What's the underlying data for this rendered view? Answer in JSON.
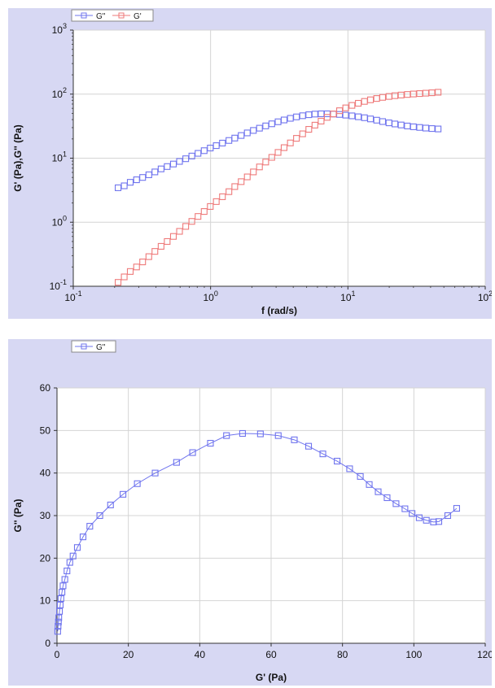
{
  "colors": {
    "panel_bg": "#d7d8f3",
    "plot_bg": "#ffffff",
    "grid": "#d4d4d4",
    "series_blue": "#6f74ee",
    "series_red": "#ee7a7a"
  },
  "chart_data": [
    {
      "type": "scatter",
      "x_scale": "log",
      "y_scale": "log",
      "xlabel": "f (rad/s)",
      "ylabel": "G' (Pa),G'' (Pa)",
      "xlim": [
        0.1,
        100
      ],
      "ylim": [
        0.1,
        1000
      ],
      "x_ticks": [
        {
          "base": "10",
          "exp": "-1"
        },
        {
          "base": "10",
          "exp": "0"
        },
        {
          "base": "10",
          "exp": "1"
        },
        {
          "base": "10",
          "exp": "2"
        }
      ],
      "y_ticks": [
        {
          "base": "10",
          "exp": "-1"
        },
        {
          "base": "10",
          "exp": "0"
        },
        {
          "base": "10",
          "exp": "1"
        },
        {
          "base": "10",
          "exp": "2"
        },
        {
          "base": "10",
          "exp": "3"
        }
      ],
      "grid": true,
      "legend_position": "top-left",
      "legend": [
        "G\"",
        "G'"
      ],
      "series": [
        {
          "name": "G\"",
          "color": "#6f74ee",
          "marker": "square-open",
          "x": [
            0.212,
            0.235,
            0.26,
            0.289,
            0.32,
            0.355,
            0.393,
            0.436,
            0.483,
            0.536,
            0.594,
            0.659,
            0.73,
            0.81,
            0.898,
            0.995,
            1.1,
            1.22,
            1.36,
            1.5,
            1.67,
            1.85,
            2.05,
            2.27,
            2.52,
            2.79,
            3.1,
            3.43,
            3.81,
            4.22,
            4.68,
            5.19,
            5.75,
            6.38,
            7.07,
            7.84,
            8.69,
            9.64,
            10.7,
            11.9,
            13.2,
            14.6,
            16.2,
            17.9,
            19.9,
            22.0,
            24.4,
            27.1,
            30.0,
            33.3,
            36.9,
            40.9,
            45.4
          ],
          "y": [
            3.45,
            3.7,
            4.2,
            4.6,
            5.0,
            5.5,
            6.1,
            6.8,
            7.4,
            8.1,
            8.9,
            9.8,
            10.8,
            11.9,
            13.1,
            14.4,
            15.7,
            17.2,
            18.9,
            20.6,
            22.6,
            24.8,
            27.1,
            29.4,
            31.9,
            34.4,
            37.0,
            39.5,
            41.9,
            44.1,
            46.0,
            47.7,
            48.8,
            49.3,
            49.3,
            48.9,
            48.2,
            47.0,
            45.8,
            44.3,
            42.8,
            41.0,
            39.2,
            37.3,
            35.6,
            34.2,
            33.0,
            31.8,
            30.9,
            30.2,
            29.5,
            29.0,
            28.6
          ]
        },
        {
          "name": "G'",
          "color": "#ee7a7a",
          "marker": "square-open",
          "x": [
            0.212,
            0.235,
            0.26,
            0.289,
            0.32,
            0.355,
            0.393,
            0.436,
            0.483,
            0.536,
            0.594,
            0.659,
            0.73,
            0.81,
            0.898,
            0.995,
            1.1,
            1.22,
            1.36,
            1.5,
            1.67,
            1.85,
            2.05,
            2.27,
            2.52,
            2.79,
            3.1,
            3.43,
            3.81,
            4.22,
            4.68,
            5.19,
            5.75,
            6.38,
            7.07,
            7.84,
            8.69,
            9.64,
            10.7,
            11.9,
            13.2,
            14.6,
            16.2,
            17.9,
            19.9,
            22.0,
            24.4,
            27.1,
            30.0,
            33.3,
            36.9,
            40.9,
            45.4
          ],
          "y": [
            0.115,
            0.14,
            0.17,
            0.2,
            0.24,
            0.29,
            0.35,
            0.42,
            0.5,
            0.6,
            0.72,
            0.86,
            1.03,
            1.23,
            1.47,
            1.76,
            2.1,
            2.5,
            3.0,
            3.6,
            4.3,
            5.1,
            6.1,
            7.3,
            8.7,
            10.3,
            12.3,
            14.6,
            17.3,
            20.4,
            24.0,
            28.2,
            32.8,
            37.9,
            43.4,
            49.1,
            55.1,
            61.0,
            66.7,
            72.0,
            77.0,
            81.5,
            85.5,
            89.0,
            92.0,
            94.6,
            96.8,
            98.8,
            100.5,
            102.0,
            103.5,
            105.0,
            107.0
          ]
        }
      ]
    },
    {
      "type": "scatter",
      "xlabel": "G' (Pa)",
      "ylabel": "G'' (Pa)",
      "xlim": [
        0,
        120
      ],
      "ylim": [
        0,
        60
      ],
      "x_ticks": [
        "0",
        "20",
        "40",
        "60",
        "80",
        "100",
        "120"
      ],
      "y_ticks": [
        "0",
        "10",
        "20",
        "30",
        "40",
        "50",
        "60"
      ],
      "grid": true,
      "legend_position": "top-left",
      "legend": [
        "G\""
      ],
      "series": [
        {
          "name": "G\"",
          "color": "#6f74ee",
          "marker": "square-open-line",
          "x": [
            0.2,
            0.3,
            0.4,
            0.5,
            0.7,
            0.9,
            1.1,
            1.4,
            1.7,
            2.2,
            2.8,
            3.6,
            4.5,
            5.7,
            7.3,
            9.2,
            12.0,
            15.0,
            18.5,
            22.5,
            27.5,
            33.5,
            38.0,
            43.0,
            47.5,
            52.0,
            57.0,
            62.0,
            66.5,
            70.5,
            74.5,
            78.5,
            82.0,
            85.0,
            87.5,
            90.0,
            92.5,
            95.0,
            97.5,
            99.5,
            101.5,
            103.5,
            105.5,
            107.0,
            109.5,
            112.0
          ],
          "y": [
            2.8,
            4.0,
            5.0,
            6.0,
            7.5,
            9.0,
            10.5,
            12.0,
            13.5,
            15.0,
            17.0,
            19.0,
            20.5,
            22.5,
            25.0,
            27.5,
            30.0,
            32.5,
            35.0,
            37.5,
            40.0,
            42.5,
            44.8,
            47.0,
            48.8,
            49.3,
            49.2,
            48.8,
            47.8,
            46.3,
            44.5,
            42.8,
            41.0,
            39.2,
            37.3,
            35.6,
            34.2,
            32.8,
            31.6,
            30.5,
            29.5,
            28.9,
            28.5,
            28.6,
            30.0,
            31.7
          ]
        }
      ]
    }
  ]
}
